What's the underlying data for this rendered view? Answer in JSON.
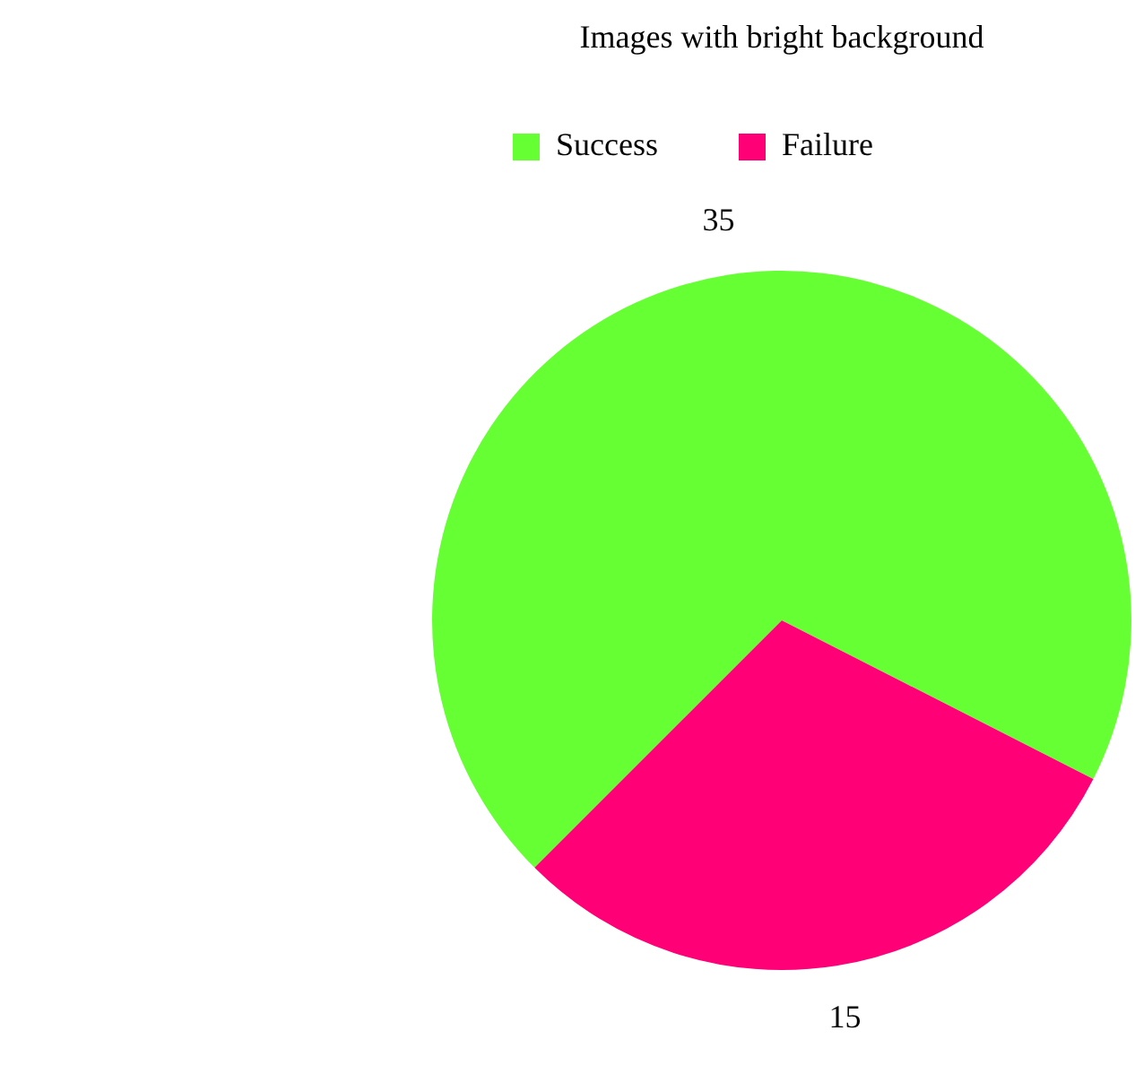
{
  "chart_data": {
    "type": "pie",
    "title": "Images with bright background",
    "categories": [
      "Success",
      "Failure"
    ],
    "values": [
      35,
      15
    ],
    "colors": [
      "#66ff33",
      "#ff0077"
    ],
    "data_labels": true,
    "legend": "top left"
  }
}
